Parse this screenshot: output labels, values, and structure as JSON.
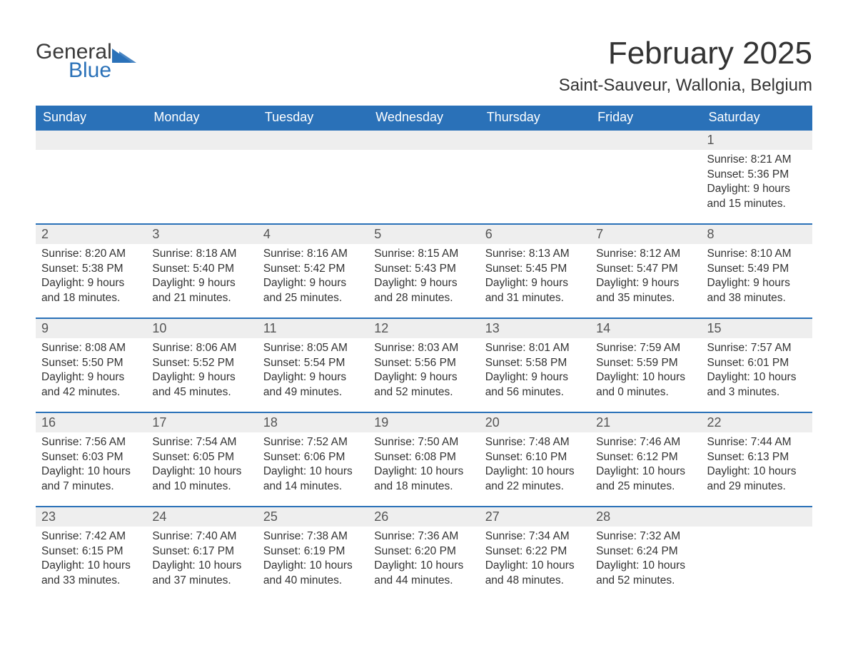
{
  "logo": {
    "word1": "General",
    "word2": "Blue"
  },
  "title": "February 2025",
  "location": "Saint-Sauveur, Wallonia, Belgium",
  "colors": {
    "header_bg": "#2a71b8",
    "header_text": "#ffffff",
    "row_sep": "#2a71b8",
    "daynum_bg": "#eeeeee",
    "body_text": "#333333",
    "logo_blue": "#2a71b8",
    "logo_dark": "#3a3a3a",
    "page_bg": "#ffffff"
  },
  "weekdays": [
    "Sunday",
    "Monday",
    "Tuesday",
    "Wednesday",
    "Thursday",
    "Friday",
    "Saturday"
  ],
  "weeks": [
    [
      null,
      null,
      null,
      null,
      null,
      null,
      {
        "n": 1,
        "sunrise": "8:21 AM",
        "sunset": "5:36 PM",
        "daylight": "9 hours and 15 minutes."
      }
    ],
    [
      {
        "n": 2,
        "sunrise": "8:20 AM",
        "sunset": "5:38 PM",
        "daylight": "9 hours and 18 minutes."
      },
      {
        "n": 3,
        "sunrise": "8:18 AM",
        "sunset": "5:40 PM",
        "daylight": "9 hours and 21 minutes."
      },
      {
        "n": 4,
        "sunrise": "8:16 AM",
        "sunset": "5:42 PM",
        "daylight": "9 hours and 25 minutes."
      },
      {
        "n": 5,
        "sunrise": "8:15 AM",
        "sunset": "5:43 PM",
        "daylight": "9 hours and 28 minutes."
      },
      {
        "n": 6,
        "sunrise": "8:13 AM",
        "sunset": "5:45 PM",
        "daylight": "9 hours and 31 minutes."
      },
      {
        "n": 7,
        "sunrise": "8:12 AM",
        "sunset": "5:47 PM",
        "daylight": "9 hours and 35 minutes."
      },
      {
        "n": 8,
        "sunrise": "8:10 AM",
        "sunset": "5:49 PM",
        "daylight": "9 hours and 38 minutes."
      }
    ],
    [
      {
        "n": 9,
        "sunrise": "8:08 AM",
        "sunset": "5:50 PM",
        "daylight": "9 hours and 42 minutes."
      },
      {
        "n": 10,
        "sunrise": "8:06 AM",
        "sunset": "5:52 PM",
        "daylight": "9 hours and 45 minutes."
      },
      {
        "n": 11,
        "sunrise": "8:05 AM",
        "sunset": "5:54 PM",
        "daylight": "9 hours and 49 minutes."
      },
      {
        "n": 12,
        "sunrise": "8:03 AM",
        "sunset": "5:56 PM",
        "daylight": "9 hours and 52 minutes."
      },
      {
        "n": 13,
        "sunrise": "8:01 AM",
        "sunset": "5:58 PM",
        "daylight": "9 hours and 56 minutes."
      },
      {
        "n": 14,
        "sunrise": "7:59 AM",
        "sunset": "5:59 PM",
        "daylight": "10 hours and 0 minutes."
      },
      {
        "n": 15,
        "sunrise": "7:57 AM",
        "sunset": "6:01 PM",
        "daylight": "10 hours and 3 minutes."
      }
    ],
    [
      {
        "n": 16,
        "sunrise": "7:56 AM",
        "sunset": "6:03 PM",
        "daylight": "10 hours and 7 minutes."
      },
      {
        "n": 17,
        "sunrise": "7:54 AM",
        "sunset": "6:05 PM",
        "daylight": "10 hours and 10 minutes."
      },
      {
        "n": 18,
        "sunrise": "7:52 AM",
        "sunset": "6:06 PM",
        "daylight": "10 hours and 14 minutes."
      },
      {
        "n": 19,
        "sunrise": "7:50 AM",
        "sunset": "6:08 PM",
        "daylight": "10 hours and 18 minutes."
      },
      {
        "n": 20,
        "sunrise": "7:48 AM",
        "sunset": "6:10 PM",
        "daylight": "10 hours and 22 minutes."
      },
      {
        "n": 21,
        "sunrise": "7:46 AM",
        "sunset": "6:12 PM",
        "daylight": "10 hours and 25 minutes."
      },
      {
        "n": 22,
        "sunrise": "7:44 AM",
        "sunset": "6:13 PM",
        "daylight": "10 hours and 29 minutes."
      }
    ],
    [
      {
        "n": 23,
        "sunrise": "7:42 AM",
        "sunset": "6:15 PM",
        "daylight": "10 hours and 33 minutes."
      },
      {
        "n": 24,
        "sunrise": "7:40 AM",
        "sunset": "6:17 PM",
        "daylight": "10 hours and 37 minutes."
      },
      {
        "n": 25,
        "sunrise": "7:38 AM",
        "sunset": "6:19 PM",
        "daylight": "10 hours and 40 minutes."
      },
      {
        "n": 26,
        "sunrise": "7:36 AM",
        "sunset": "6:20 PM",
        "daylight": "10 hours and 44 minutes."
      },
      {
        "n": 27,
        "sunrise": "7:34 AM",
        "sunset": "6:22 PM",
        "daylight": "10 hours and 48 minutes."
      },
      {
        "n": 28,
        "sunrise": "7:32 AM",
        "sunset": "6:24 PM",
        "daylight": "10 hours and 52 minutes."
      },
      null
    ]
  ],
  "labels": {
    "sunrise": "Sunrise:",
    "sunset": "Sunset:",
    "daylight": "Daylight:"
  }
}
